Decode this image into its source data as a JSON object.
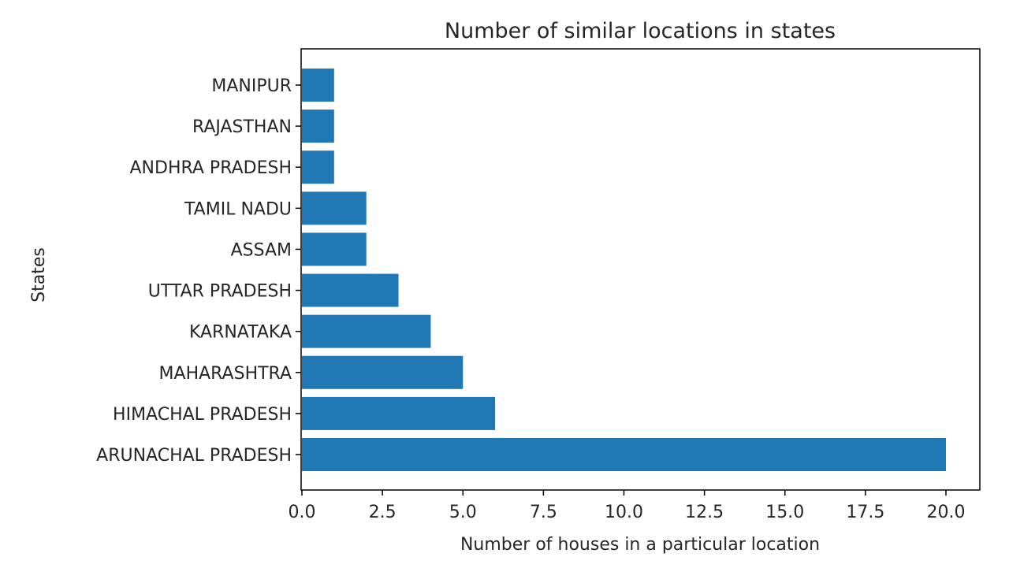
{
  "chart_data": {
    "type": "bar",
    "orientation": "horizontal",
    "title": "Number of similar locations in states",
    "xlabel": "Number of houses in a particular location",
    "ylabel": "States",
    "categories": [
      "ARUNACHAL PRADESH",
      "HIMACHAL PRADESH",
      "MAHARASHTRA",
      "KARNATAKA",
      "UTTAR PRADESH",
      "ASSAM",
      "TAMIL NADU",
      "ANDHRA PRADESH",
      "RAJASTHAN",
      "MANIPUR"
    ],
    "values": [
      20,
      6,
      5,
      4,
      3,
      2,
      2,
      1,
      1,
      1
    ],
    "xlim": [
      0,
      21
    ],
    "xticks": [
      "0.0",
      "2.5",
      "5.0",
      "7.5",
      "10.0",
      "12.5",
      "15.0",
      "17.5",
      "20.0"
    ],
    "grid": false,
    "bar_color": "#1f77b4"
  }
}
